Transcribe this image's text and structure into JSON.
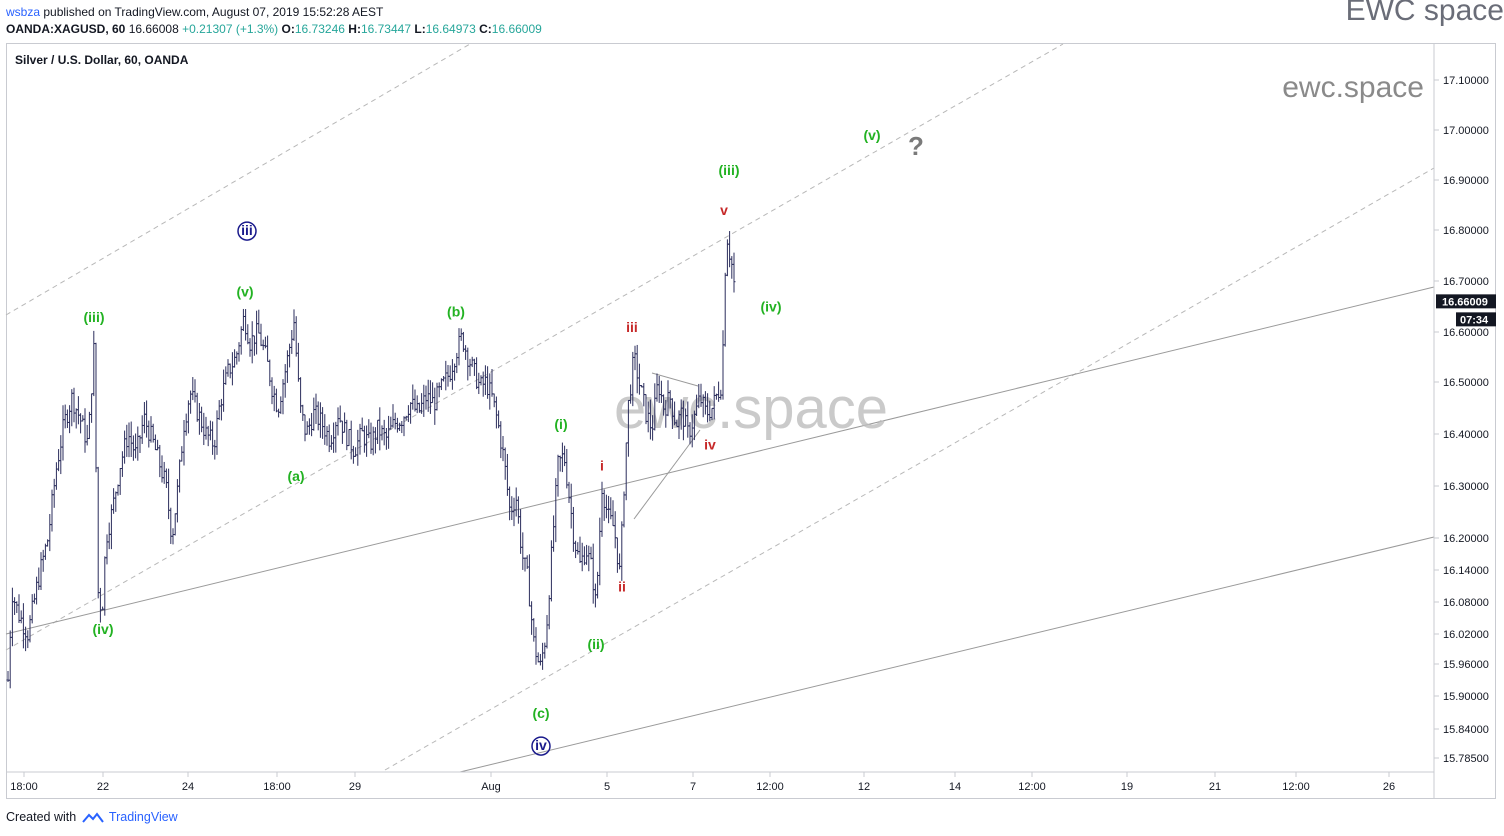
{
  "header": {
    "author": "wsbza",
    "published_text": "published on TradingView.com, August 07, 2019 15:52:28 AEST",
    "symbol": "OANDA:XAGUSD, 60",
    "price": "16.66008",
    "change": "+0.21307 (+1.3%)",
    "o_label": "O:",
    "o_value": "16.73246",
    "h_label": "H:",
    "h_value": "16.73447",
    "l_label": "L:",
    "l_value": "16.64973",
    "c_label": "C:",
    "c_value": "16.66009"
  },
  "brand_top_right": "EWC space",
  "footer": {
    "created_with": "Created with",
    "tradingview": "TradingView"
  },
  "colors": {
    "green": "#22b222",
    "red": "#c62828",
    "navy": "#1a1a8c",
    "candle": "#2b2d5c",
    "last_price_bg": "#131722"
  },
  "chart_data": {
    "type": "candlestick",
    "title": "Silver / U.S. Dollar, 60, OANDA",
    "y_ticks": [
      15.785,
      15.84,
      15.9,
      15.96,
      16.02,
      16.08,
      16.14,
      16.2,
      16.3,
      16.4,
      16.5,
      16.6,
      16.7,
      16.8,
      16.9,
      17.0,
      17.1
    ],
    "y_tick_labels": [
      "15.78500",
      "15.84000",
      "15.90000",
      "15.96000",
      "16.02000",
      "16.08000",
      "16.14000",
      "16.20000",
      "16.30000",
      "16.40000",
      "16.50000",
      "16.60000",
      "16.70000",
      "16.80000",
      "16.90000",
      "17.00000",
      "17.10000"
    ],
    "x_tick_labels": [
      "18:00",
      "22",
      "24",
      "18:00",
      "29",
      "Aug",
      "5",
      "7",
      "12:00",
      "12",
      "14",
      "12:00",
      "19",
      "21",
      "12:00",
      "26"
    ],
    "last_price": "16.66009",
    "countdown": "07:34",
    "watermarks": [
      "ewc.space",
      "ewc.space"
    ],
    "price_path": [
      [
        0,
        15.93
      ],
      [
        4,
        16.1
      ],
      [
        10,
        16.06
      ],
      [
        20,
        16.02
      ],
      [
        30,
        16.12
      ],
      [
        40,
        16.2
      ],
      [
        48,
        16.33
      ],
      [
        56,
        16.42
      ],
      [
        64,
        16.47
      ],
      [
        72,
        16.43
      ],
      [
        80,
        16.38
      ],
      [
        86,
        16.57
      ],
      [
        90,
        16.1
      ],
      [
        94,
        16.06
      ],
      [
        98,
        16.2
      ],
      [
        104,
        16.25
      ],
      [
        112,
        16.34
      ],
      [
        120,
        16.4
      ],
      [
        128,
        16.36
      ],
      [
        136,
        16.43
      ],
      [
        144,
        16.39
      ],
      [
        152,
        16.34
      ],
      [
        158,
        16.3
      ],
      [
        164,
        16.2
      ],
      [
        170,
        16.3
      ],
      [
        176,
        16.42
      ],
      [
        182,
        16.48
      ],
      [
        190,
        16.44
      ],
      [
        198,
        16.4
      ],
      [
        206,
        16.38
      ],
      [
        212,
        16.46
      ],
      [
        220,
        16.52
      ],
      [
        228,
        16.55
      ],
      [
        236,
        16.63
      ],
      [
        242,
        16.58
      ],
      [
        250,
        16.6
      ],
      [
        258,
        16.55
      ],
      [
        264,
        16.49
      ],
      [
        270,
        16.45
      ],
      [
        278,
        16.53
      ],
      [
        286,
        16.62
      ],
      [
        292,
        16.45
      ],
      [
        298,
        16.4
      ],
      [
        306,
        16.44
      ],
      [
        314,
        16.42
      ],
      [
        322,
        16.39
      ],
      [
        330,
        16.44
      ],
      [
        338,
        16.4
      ],
      [
        346,
        16.37
      ],
      [
        354,
        16.4
      ],
      [
        362,
        16.38
      ],
      [
        370,
        16.41
      ],
      [
        378,
        16.39
      ],
      [
        386,
        16.42
      ],
      [
        394,
        16.43
      ],
      [
        402,
        16.46
      ],
      [
        410,
        16.44
      ],
      [
        418,
        16.47
      ],
      [
        426,
        16.46
      ],
      [
        434,
        16.49
      ],
      [
        442,
        16.52
      ],
      [
        448,
        16.56
      ],
      [
        454,
        16.59
      ],
      [
        460,
        16.55
      ],
      [
        466,
        16.52
      ],
      [
        472,
        16.49
      ],
      [
        478,
        16.5
      ],
      [
        484,
        16.47
      ],
      [
        490,
        16.42
      ],
      [
        496,
        16.35
      ],
      [
        502,
        16.25
      ],
      [
        508,
        16.28
      ],
      [
        514,
        16.17
      ],
      [
        520,
        16.12
      ],
      [
        526,
        16.0
      ],
      [
        532,
        15.95
      ],
      [
        538,
        16.02
      ],
      [
        544,
        16.18
      ],
      [
        550,
        16.34
      ],
      [
        556,
        16.36
      ],
      [
        560,
        16.3
      ],
      [
        566,
        16.2
      ],
      [
        572,
        16.15
      ],
      [
        578,
        16.18
      ],
      [
        584,
        16.14
      ],
      [
        588,
        16.07
      ],
      [
        594,
        16.3
      ],
      [
        600,
        16.24
      ],
      [
        606,
        16.22
      ],
      [
        612,
        16.13
      ],
      [
        616,
        16.3
      ],
      [
        620,
        16.45
      ],
      [
        626,
        16.55
      ],
      [
        632,
        16.49
      ],
      [
        638,
        16.44
      ],
      [
        644,
        16.41
      ],
      [
        650,
        16.5
      ],
      [
        656,
        16.45
      ],
      [
        662,
        16.47
      ],
      [
        668,
        16.42
      ],
      [
        674,
        16.44
      ],
      [
        680,
        16.4
      ],
      [
        686,
        16.43
      ],
      [
        692,
        16.47
      ],
      [
        698,
        16.44
      ],
      [
        704,
        16.45
      ],
      [
        710,
        16.48
      ],
      [
        714,
        16.5
      ],
      [
        717,
        16.72
      ],
      [
        719,
        16.79
      ],
      [
        722,
        16.75
      ],
      [
        725,
        16.72
      ],
      [
        727,
        16.67
      ]
    ],
    "annotations": [
      {
        "label": "(iii)",
        "color": "green",
        "x": 86,
        "y": 16.62
      },
      {
        "label": "(iv)",
        "color": "green",
        "x": 95,
        "y": 16.02
      },
      {
        "label": "iii",
        "color": "navy",
        "circled": true,
        "x": 239,
        "y": 16.79
      },
      {
        "label": "(v)",
        "color": "green",
        "x": 237,
        "y": 16.67
      },
      {
        "label": "(a)",
        "color": "green",
        "x": 288,
        "y": 16.31
      },
      {
        "label": "(b)",
        "color": "green",
        "x": 448,
        "y": 16.63
      },
      {
        "label": "(i)",
        "color": "green",
        "x": 553,
        "y": 16.41
      },
      {
        "label": "(ii)",
        "color": "green",
        "x": 588,
        "y": 15.99
      },
      {
        "label": "(c)",
        "color": "green",
        "x": 533,
        "y": 15.86
      },
      {
        "label": "iv",
        "color": "navy",
        "circled": true,
        "x": 533,
        "y": 15.8
      },
      {
        "label": "i",
        "color": "red",
        "x": 594,
        "y": 16.33
      },
      {
        "label": "ii",
        "color": "red",
        "x": 614,
        "y": 16.1
      },
      {
        "label": "iii",
        "color": "red",
        "x": 624,
        "y": 16.6
      },
      {
        "label": "iv",
        "color": "red",
        "x": 702,
        "y": 16.37
      },
      {
        "label": "v",
        "color": "red",
        "x": 716,
        "y": 16.83
      },
      {
        "label": "(iii)",
        "color": "green",
        "x": 721,
        "y": 16.91
      },
      {
        "label": "(iv)",
        "color": "green",
        "x": 763,
        "y": 16.64
      },
      {
        "label": "(v)",
        "color": "green",
        "x": 864,
        "y": 16.98
      },
      {
        "label": "?",
        "color": "gray",
        "x": 908,
        "y": 16.95
      }
    ]
  }
}
